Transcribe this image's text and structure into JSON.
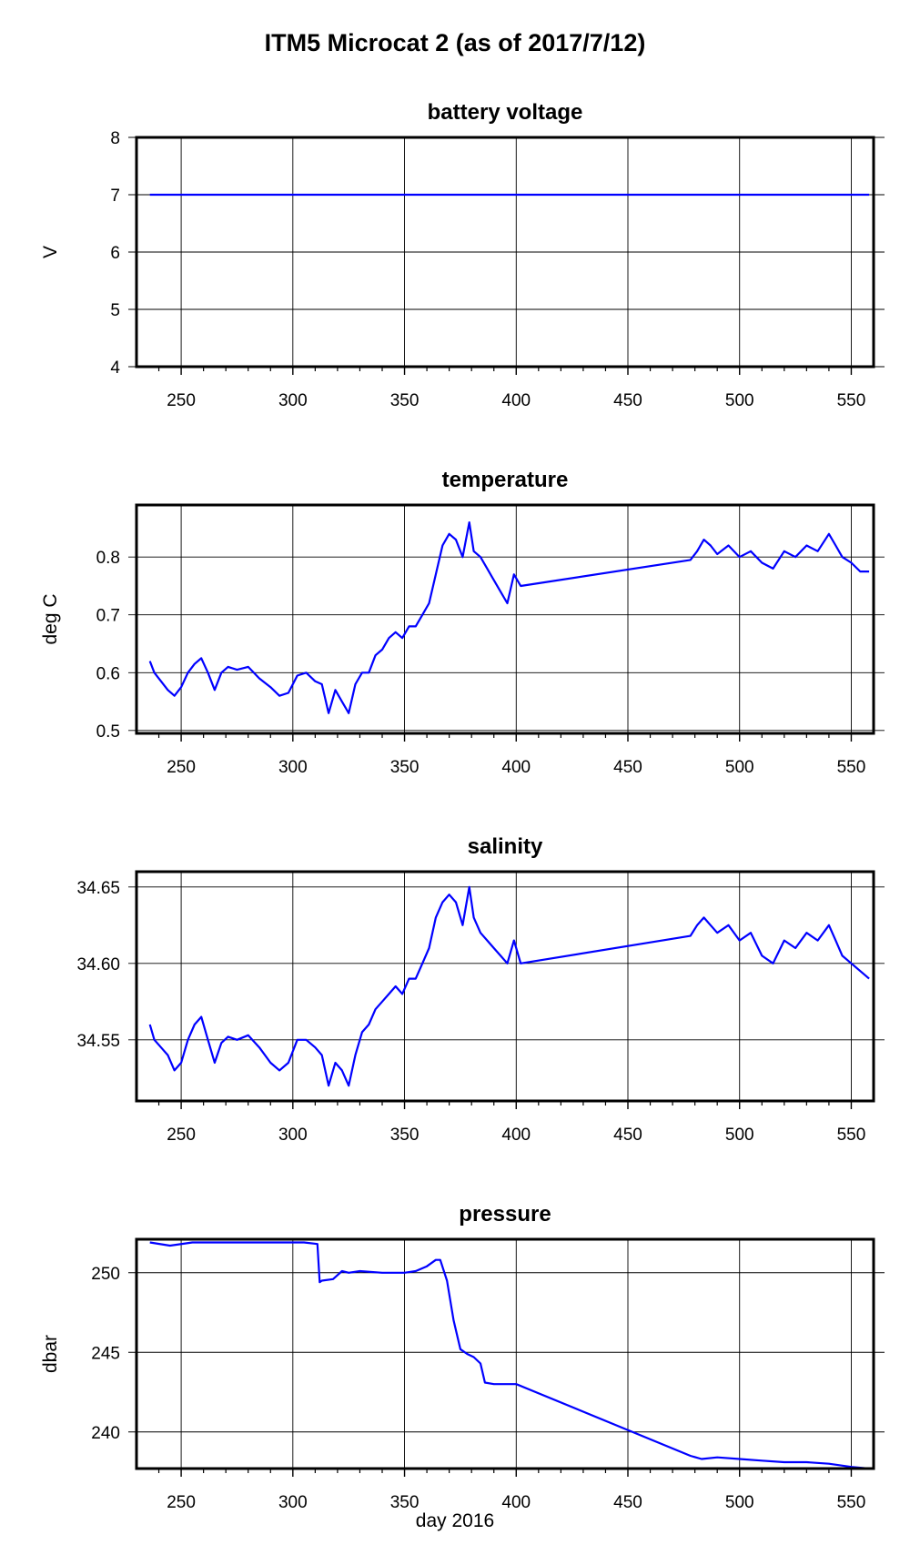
{
  "figure": {
    "title": "ITM5 Microcat 2 (as of 2017/7/12)",
    "xlabel": "day 2016",
    "line_color": "#0000ff"
  },
  "chart_data": [
    {
      "type": "line",
      "title": "battery voltage",
      "ylabel": "V",
      "xlim": [
        230,
        560
      ],
      "ylim": [
        4,
        8
      ],
      "xticks": [
        250,
        300,
        350,
        400,
        450,
        500,
        550
      ],
      "xtick_labels": [
        "250",
        "300",
        "350",
        "400",
        "450",
        "500",
        "550"
      ],
      "yticks": [
        4,
        5,
        6,
        7,
        8
      ],
      "ytick_labels": [
        "4",
        "5",
        "6",
        "7",
        "8"
      ],
      "grid": true,
      "series": [
        {
          "x": [
            236,
            260,
            300,
            350,
            400,
            450,
            500,
            558
          ],
          "y": [
            7.0,
            7.0,
            7.0,
            7.0,
            7.0,
            7.0,
            7.0,
            7.0
          ]
        }
      ]
    },
    {
      "type": "line",
      "title": "temperature",
      "ylabel": "deg C",
      "xlim": [
        230,
        560
      ],
      "ylim": [
        0.495,
        0.89
      ],
      "xticks": [
        250,
        300,
        350,
        400,
        450,
        500,
        550
      ],
      "xtick_labels": [
        "250",
        "300",
        "350",
        "400",
        "450",
        "500",
        "550"
      ],
      "yticks": [
        0.5,
        0.6,
        0.7,
        0.8
      ],
      "ytick_labels": [
        "0.5",
        "0.6",
        "0.7",
        "0.8"
      ],
      "grid": true,
      "series": [
        {
          "x": [
            236,
            238,
            241,
            244,
            247,
            250,
            253,
            256,
            259,
            262,
            265,
            268,
            271,
            275,
            280,
            285,
            290,
            294,
            298,
            302,
            306,
            310,
            313,
            316,
            319,
            322,
            325,
            328,
            331,
            334,
            337,
            340,
            343,
            346,
            349,
            352,
            355,
            358,
            361,
            364,
            367,
            370,
            373,
            376,
            379,
            381,
            384,
            387,
            390,
            393,
            396,
            399,
            402,
            478,
            481,
            484,
            487,
            490,
            495,
            500,
            505,
            510,
            515,
            520,
            525,
            530,
            535,
            540,
            543,
            546,
            550,
            554,
            558
          ],
          "y": [
            0.62,
            0.6,
            0.585,
            0.57,
            0.56,
            0.575,
            0.6,
            0.615,
            0.625,
            0.6,
            0.57,
            0.6,
            0.61,
            0.605,
            0.61,
            0.59,
            0.575,
            0.56,
            0.565,
            0.595,
            0.6,
            0.585,
            0.58,
            0.53,
            0.57,
            0.55,
            0.53,
            0.58,
            0.6,
            0.6,
            0.63,
            0.64,
            0.66,
            0.67,
            0.66,
            0.68,
            0.68,
            0.7,
            0.72,
            0.77,
            0.82,
            0.84,
            0.83,
            0.8,
            0.86,
            0.81,
            0.8,
            0.78,
            0.76,
            0.74,
            0.72,
            0.77,
            0.75,
            0.795,
            0.81,
            0.83,
            0.82,
            0.805,
            0.82,
            0.8,
            0.81,
            0.79,
            0.78,
            0.81,
            0.8,
            0.82,
            0.81,
            0.84,
            0.82,
            0.8,
            0.79,
            0.775,
            0.775
          ]
        }
      ]
    },
    {
      "type": "line",
      "title": "salinity",
      "ylabel": "",
      "xlim": [
        230,
        560
      ],
      "ylim": [
        34.51,
        34.66
      ],
      "xticks": [
        250,
        300,
        350,
        400,
        450,
        500,
        550
      ],
      "xtick_labels": [
        "250",
        "300",
        "350",
        "400",
        "450",
        "500",
        "550"
      ],
      "yticks": [
        34.55,
        34.6,
        34.65
      ],
      "ytick_labels": [
        "34.55",
        "34.60",
        "34.65"
      ],
      "grid": true,
      "series": [
        {
          "x": [
            236,
            238,
            241,
            244,
            247,
            250,
            253,
            256,
            259,
            262,
            265,
            268,
            271,
            275,
            280,
            285,
            290,
            294,
            298,
            302,
            306,
            310,
            313,
            316,
            319,
            322,
            325,
            328,
            331,
            334,
            337,
            340,
            343,
            346,
            349,
            352,
            355,
            358,
            361,
            364,
            367,
            370,
            373,
            376,
            379,
            381,
            384,
            387,
            390,
            393,
            396,
            399,
            402,
            478,
            481,
            484,
            487,
            490,
            495,
            500,
            505,
            510,
            515,
            520,
            525,
            530,
            535,
            540,
            543,
            546,
            550,
            554,
            558
          ],
          "y": [
            34.56,
            34.55,
            34.545,
            34.54,
            34.53,
            34.535,
            34.55,
            34.56,
            34.565,
            34.55,
            34.535,
            34.548,
            34.552,
            34.55,
            34.553,
            34.545,
            34.535,
            34.53,
            34.535,
            34.55,
            34.55,
            34.545,
            34.54,
            34.52,
            34.535,
            34.53,
            34.52,
            34.54,
            34.555,
            34.56,
            34.57,
            34.575,
            34.58,
            34.585,
            34.58,
            34.59,
            34.59,
            34.6,
            34.61,
            34.63,
            34.64,
            34.645,
            34.64,
            34.625,
            34.65,
            34.63,
            34.62,
            34.615,
            34.61,
            34.605,
            34.6,
            34.615,
            34.6,
            34.618,
            34.625,
            34.63,
            34.625,
            34.62,
            34.625,
            34.615,
            34.62,
            34.605,
            34.6,
            34.615,
            34.61,
            34.62,
            34.615,
            34.625,
            34.615,
            34.605,
            34.6,
            34.595,
            34.59
          ]
        }
      ]
    },
    {
      "type": "line",
      "title": "pressure",
      "ylabel": "dbar",
      "xlim": [
        230,
        560
      ],
      "ylim": [
        237.7,
        252.1
      ],
      "xticks": [
        250,
        300,
        350,
        400,
        450,
        500,
        550
      ],
      "xtick_labels": [
        "250",
        "300",
        "350",
        "400",
        "450",
        "500",
        "550"
      ],
      "yticks": [
        240,
        245,
        250
      ],
      "ytick_labels": [
        "240",
        "245",
        "250"
      ],
      "grid": true,
      "series": [
        {
          "x": [
            236,
            245,
            255,
            270,
            290,
            305,
            311,
            312,
            313,
            318,
            322,
            325,
            330,
            340,
            350,
            355,
            360,
            364,
            366,
            369,
            372,
            375,
            378,
            381,
            384,
            386,
            390,
            395,
            400,
            478,
            483,
            490,
            500,
            510,
            520,
            530,
            540,
            550,
            558
          ],
          "y": [
            251.9,
            251.7,
            251.9,
            251.9,
            251.9,
            251.9,
            251.8,
            249.4,
            249.5,
            249.6,
            250.1,
            250.0,
            250.1,
            250.0,
            250.0,
            250.1,
            250.4,
            250.8,
            250.8,
            249.5,
            247.0,
            245.2,
            244.9,
            244.7,
            244.3,
            243.1,
            243.0,
            243.0,
            243.0,
            238.5,
            238.3,
            238.4,
            238.3,
            238.2,
            238.1,
            238.1,
            238.0,
            237.8,
            237.7
          ]
        }
      ]
    }
  ]
}
